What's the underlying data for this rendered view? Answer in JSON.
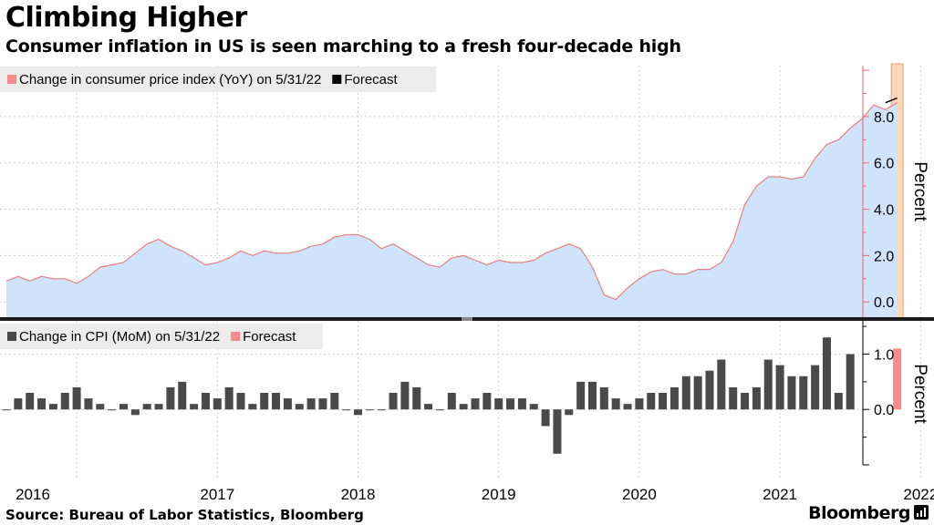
{
  "header": {
    "title": "Climbing Higher",
    "subtitle": "Consumer inflation in US is seen marching to a fresh four-decade high"
  },
  "footer": {
    "source": "Source: Bureau of Labor Statistics, Bloomberg",
    "brand": "Bloomberg"
  },
  "colors": {
    "area_fill": "#cfe4fb",
    "line": "#e8807f",
    "forecast_black": "#000000",
    "bar": "#4a4a4a",
    "bar_forecast": "#f58a8a",
    "forecast_band": "#fbd7b5",
    "axis_red": "#e86a6a",
    "grid": "#cfcfcf"
  },
  "chart_data": [
    {
      "type": "area",
      "legend": [
        {
          "label": "Change in consumer price index (YoY) on 5/31/22",
          "color": "#f58a8a"
        },
        {
          "label": "Forecast",
          "color": "#000000"
        }
      ],
      "ylabel": "Percent",
      "ylim": [
        -0.7,
        10.2
      ],
      "yticks": [
        0,
        2,
        4,
        6,
        8
      ],
      "ytick_labels": [
        "0.0",
        "2.0",
        "4.0",
        "6.0",
        "8.0"
      ],
      "x_start": "2016-01",
      "x_end": "2022-06",
      "values": [
        0.9,
        1.1,
        0.9,
        1.1,
        1.0,
        1.0,
        0.8,
        1.1,
        1.5,
        1.6,
        1.7,
        2.1,
        2.5,
        2.7,
        2.4,
        2.2,
        1.9,
        1.6,
        1.7,
        1.9,
        2.2,
        2.0,
        2.2,
        2.1,
        2.1,
        2.2,
        2.4,
        2.5,
        2.8,
        2.9,
        2.9,
        2.7,
        2.3,
        2.5,
        2.2,
        1.9,
        1.6,
        1.5,
        1.9,
        2.0,
        1.8,
        1.6,
        1.8,
        1.7,
        1.7,
        1.8,
        2.1,
        2.3,
        2.5,
        2.3,
        1.5,
        0.3,
        0.1,
        0.6,
        1.0,
        1.3,
        1.4,
        1.2,
        1.2,
        1.4,
        1.4,
        1.7,
        2.6,
        4.2,
        5.0,
        5.4,
        5.4,
        5.3,
        5.4,
        6.2,
        6.8,
        7.0,
        7.5,
        7.9,
        8.5,
        8.3,
        8.6
      ],
      "forecast": {
        "from": "2022-04",
        "to": "2022-05",
        "values": [
          8.6,
          8.8
        ]
      },
      "forecast_period": "2022-05"
    },
    {
      "type": "bar",
      "legend": [
        {
          "label": "Change in CPI (MoM) on 5/31/22",
          "color": "#4a4a4a"
        },
        {
          "label": "Forecast",
          "color": "#f58a8a"
        }
      ],
      "ylabel": "Percent",
      "ylim": [
        -1.0,
        1.6
      ],
      "yticks": [
        0,
        1
      ],
      "ytick_labels": [
        "0.0",
        "1.0"
      ],
      "x_start": "2016-01",
      "values": [
        0.0,
        0.2,
        0.3,
        0.2,
        0.1,
        0.3,
        0.4,
        0.2,
        0.1,
        0.0,
        0.1,
        -0.1,
        0.1,
        0.1,
        0.4,
        0.5,
        0.1,
        0.3,
        0.2,
        0.4,
        0.3,
        0.1,
        0.3,
        0.3,
        0.2,
        0.1,
        0.2,
        0.2,
        0.3,
        0.0,
        -0.1,
        0.0,
        0.0,
        0.3,
        0.5,
        0.4,
        0.1,
        0.0,
        0.3,
        0.1,
        0.2,
        0.3,
        0.2,
        0.2,
        0.2,
        0.1,
        -0.3,
        -0.8,
        -0.1,
        0.5,
        0.5,
        0.4,
        0.2,
        0.1,
        0.2,
        0.3,
        0.3,
        0.4,
        0.6,
        0.6,
        0.7,
        0.9,
        0.4,
        0.3,
        0.4,
        0.9,
        0.8,
        0.6,
        0.6,
        0.8,
        1.3,
        0.3,
        1.0
      ],
      "forecast": {
        "period": "2022-05",
        "value": 1.1
      }
    }
  ],
  "x_axis": {
    "tick_labels": [
      "2016",
      "2017",
      "2018",
      "2019",
      "2020",
      "2021",
      "2022"
    ]
  }
}
